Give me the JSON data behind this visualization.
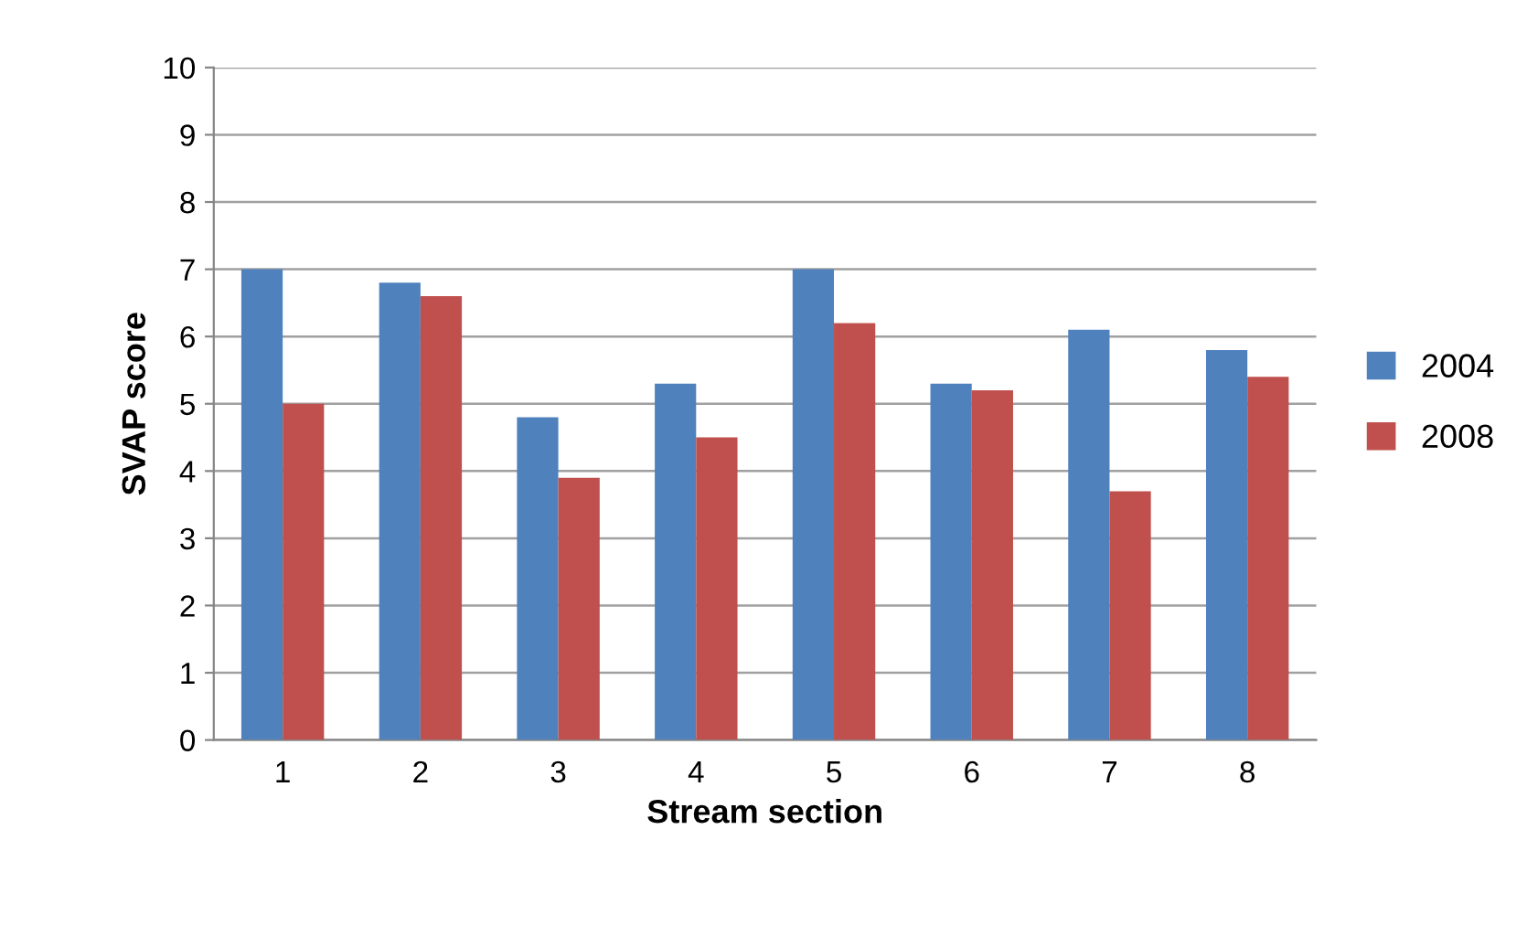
{
  "chart_data": {
    "type": "bar",
    "xlabel": "Stream section",
    "ylabel": "SVAP score",
    "categories": [
      "1",
      "2",
      "3",
      "4",
      "5",
      "6",
      "7",
      "8"
    ],
    "series": [
      {
        "name": "2004",
        "color": "#4f81bd",
        "values": [
          7.0,
          6.8,
          4.8,
          5.3,
          7.0,
          5.3,
          6.1,
          5.8
        ]
      },
      {
        "name": "2008",
        "color": "#c0504d",
        "values": [
          5.0,
          6.6,
          3.9,
          4.5,
          6.2,
          5.2,
          3.7,
          5.4
        ]
      }
    ],
    "ylim": [
      0,
      10
    ],
    "yticks": [
      0,
      1,
      2,
      3,
      4,
      5,
      6,
      7,
      8,
      9,
      10
    ],
    "grid": "y",
    "legend": "right"
  }
}
